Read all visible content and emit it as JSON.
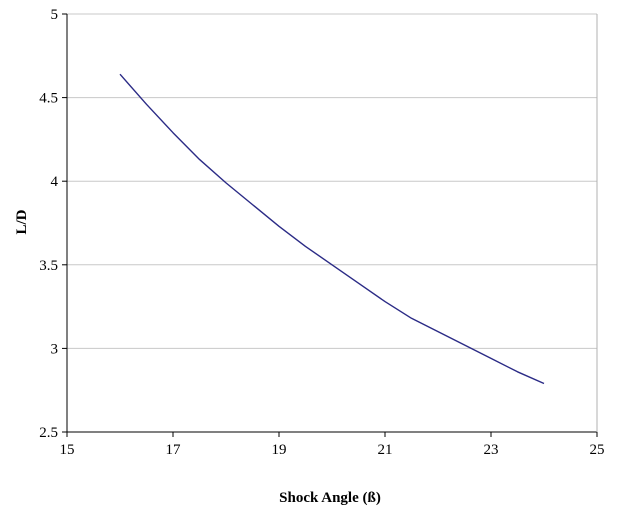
{
  "chart_data": {
    "type": "line",
    "title": "",
    "xlabel": "Shock Angle (ß)",
    "ylabel": "L/D",
    "xlim": [
      15,
      25
    ],
    "ylim": [
      2.5,
      5
    ],
    "xticks": [
      "15",
      "17",
      "19",
      "21",
      "23",
      "25"
    ],
    "yticks": [
      "2.5",
      "3",
      "3.5",
      "4",
      "4.5",
      "5"
    ],
    "grid": "horizontal",
    "legend": "none",
    "series": [
      {
        "color": "#2b2b86",
        "x": [
          16,
          16.5,
          17,
          17.5,
          18,
          18.5,
          19,
          19.5,
          20,
          20.5,
          21,
          21.5,
          22,
          22.5,
          23,
          23.5,
          24
        ],
        "y": [
          4.64,
          4.46,
          4.29,
          4.13,
          3.99,
          3.86,
          3.73,
          3.61,
          3.5,
          3.39,
          3.28,
          3.18,
          3.1,
          3.02,
          2.94,
          2.86,
          2.79
        ]
      }
    ]
  }
}
